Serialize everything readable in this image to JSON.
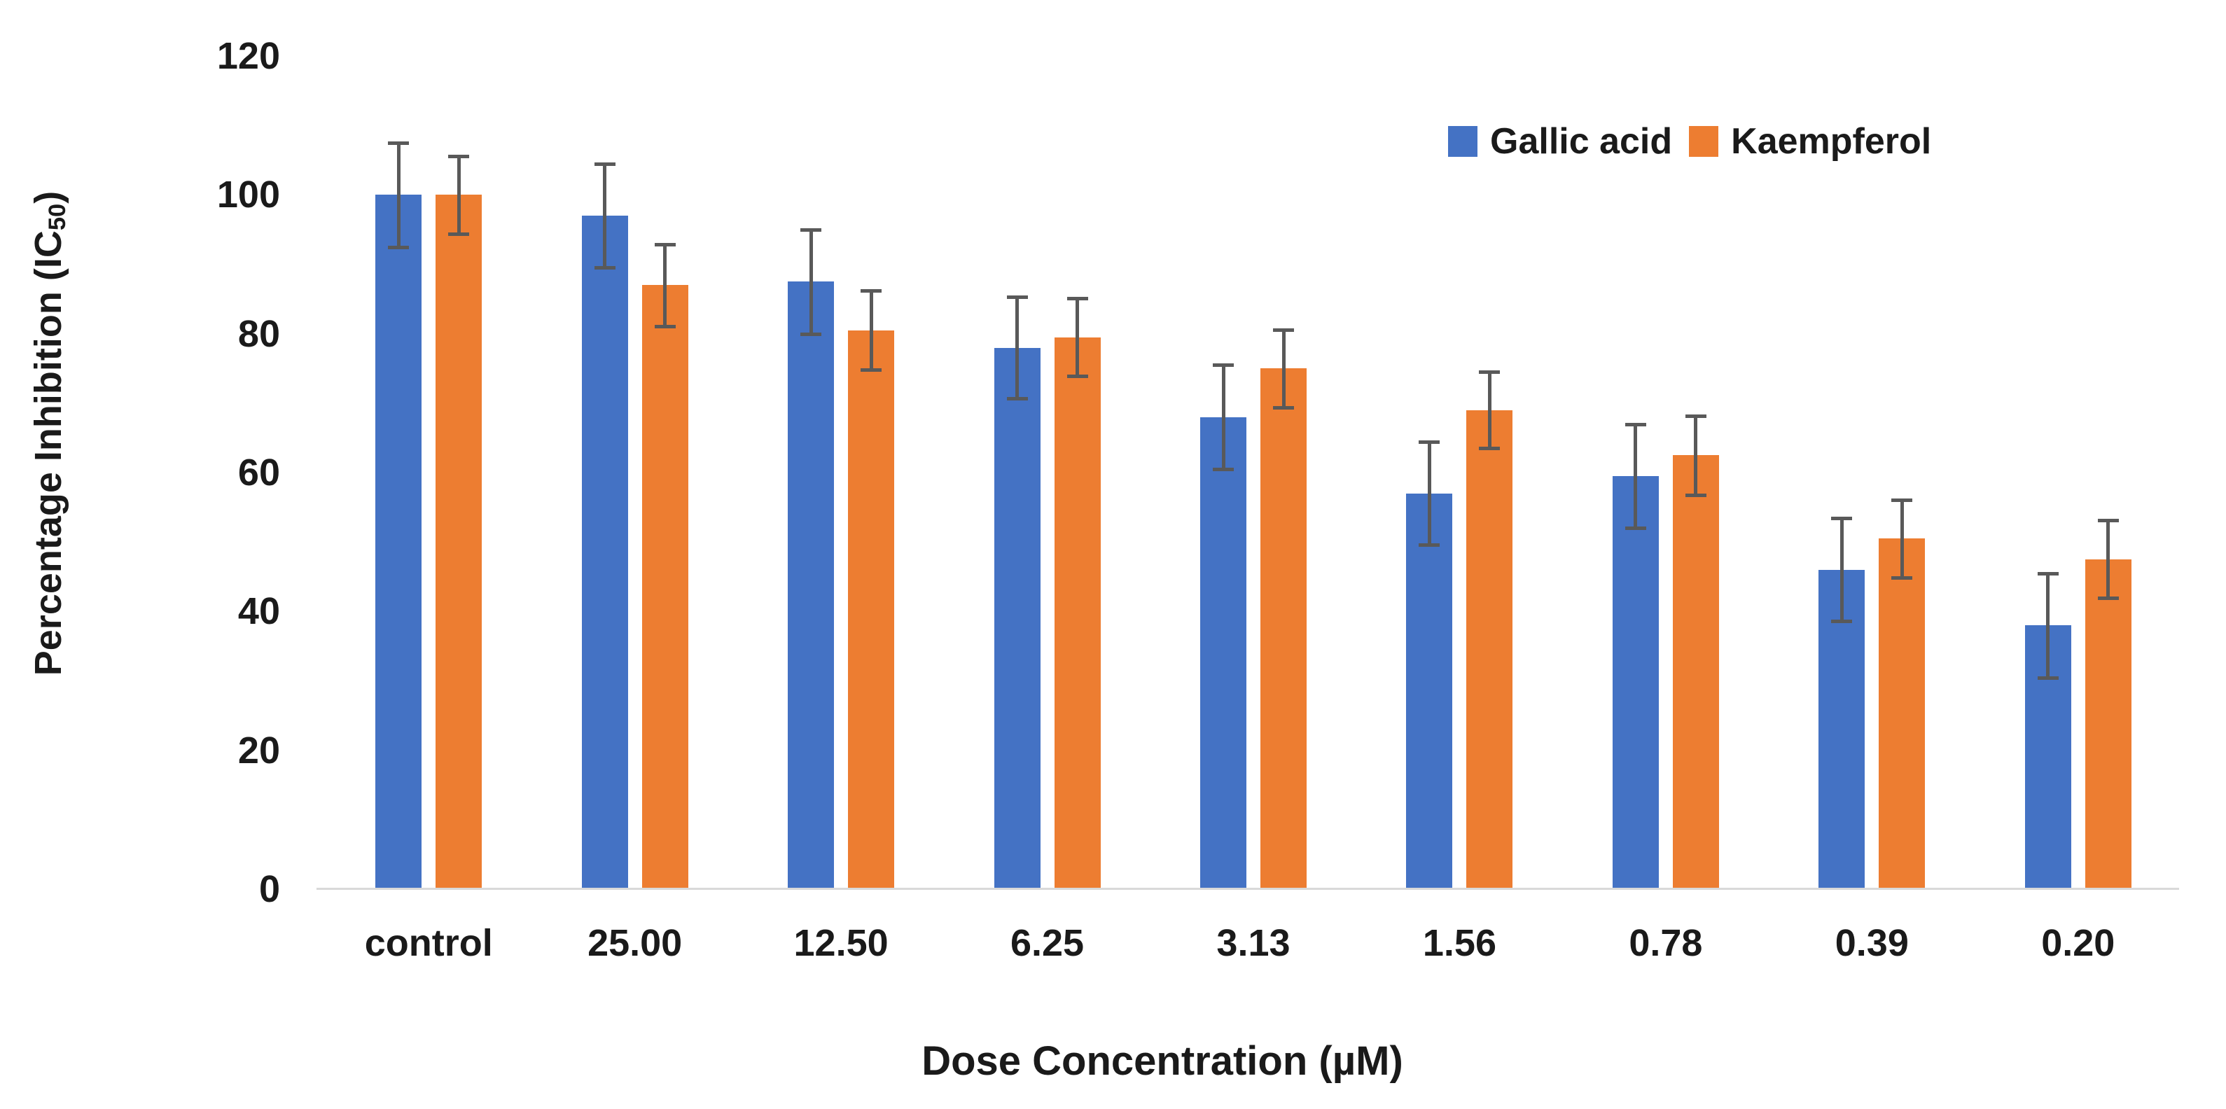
{
  "chart_data": {
    "type": "bar",
    "title": "",
    "categories": [
      "control",
      "25.00",
      "12.50",
      "6.25",
      "3.13",
      "1.56",
      "0.78",
      "0.39",
      "0.20"
    ],
    "series": [
      {
        "name": "Gallic acid",
        "color": "#4472C4",
        "values": [
          100,
          97,
          87.5,
          78,
          68,
          57,
          59.5,
          46,
          38
        ],
        "errors": [
          7.5,
          7.5,
          7.5,
          7.3,
          7.5,
          7.4,
          7.5,
          7.4,
          7.5
        ]
      },
      {
        "name": "Kaempferol",
        "color": "#ED7D31",
        "values": [
          100,
          87,
          80.5,
          79.5,
          75,
          69,
          62.5,
          50.5,
          47.5
        ],
        "errors": [
          5.6,
          5.9,
          5.7,
          5.6,
          5.6,
          5.5,
          5.7,
          5.6,
          5.6
        ]
      }
    ],
    "xlabel": "Dose Concentration (µM)",
    "ylabel": "Percentage Inhibition (IC50)",
    "ylabel_parts": {
      "prefix": "Percentage Inhibition (IC",
      "sub": "50",
      "suffix": ")"
    },
    "ylim": [
      0,
      120
    ],
    "yticks": [
      0,
      20,
      40,
      60,
      80,
      100,
      120
    ],
    "grid": false,
    "legend_position": "top-right",
    "error_bar_color": "#595959",
    "axis_line_color": "#D9D9D9",
    "text_color": "#1A1A1A"
  }
}
